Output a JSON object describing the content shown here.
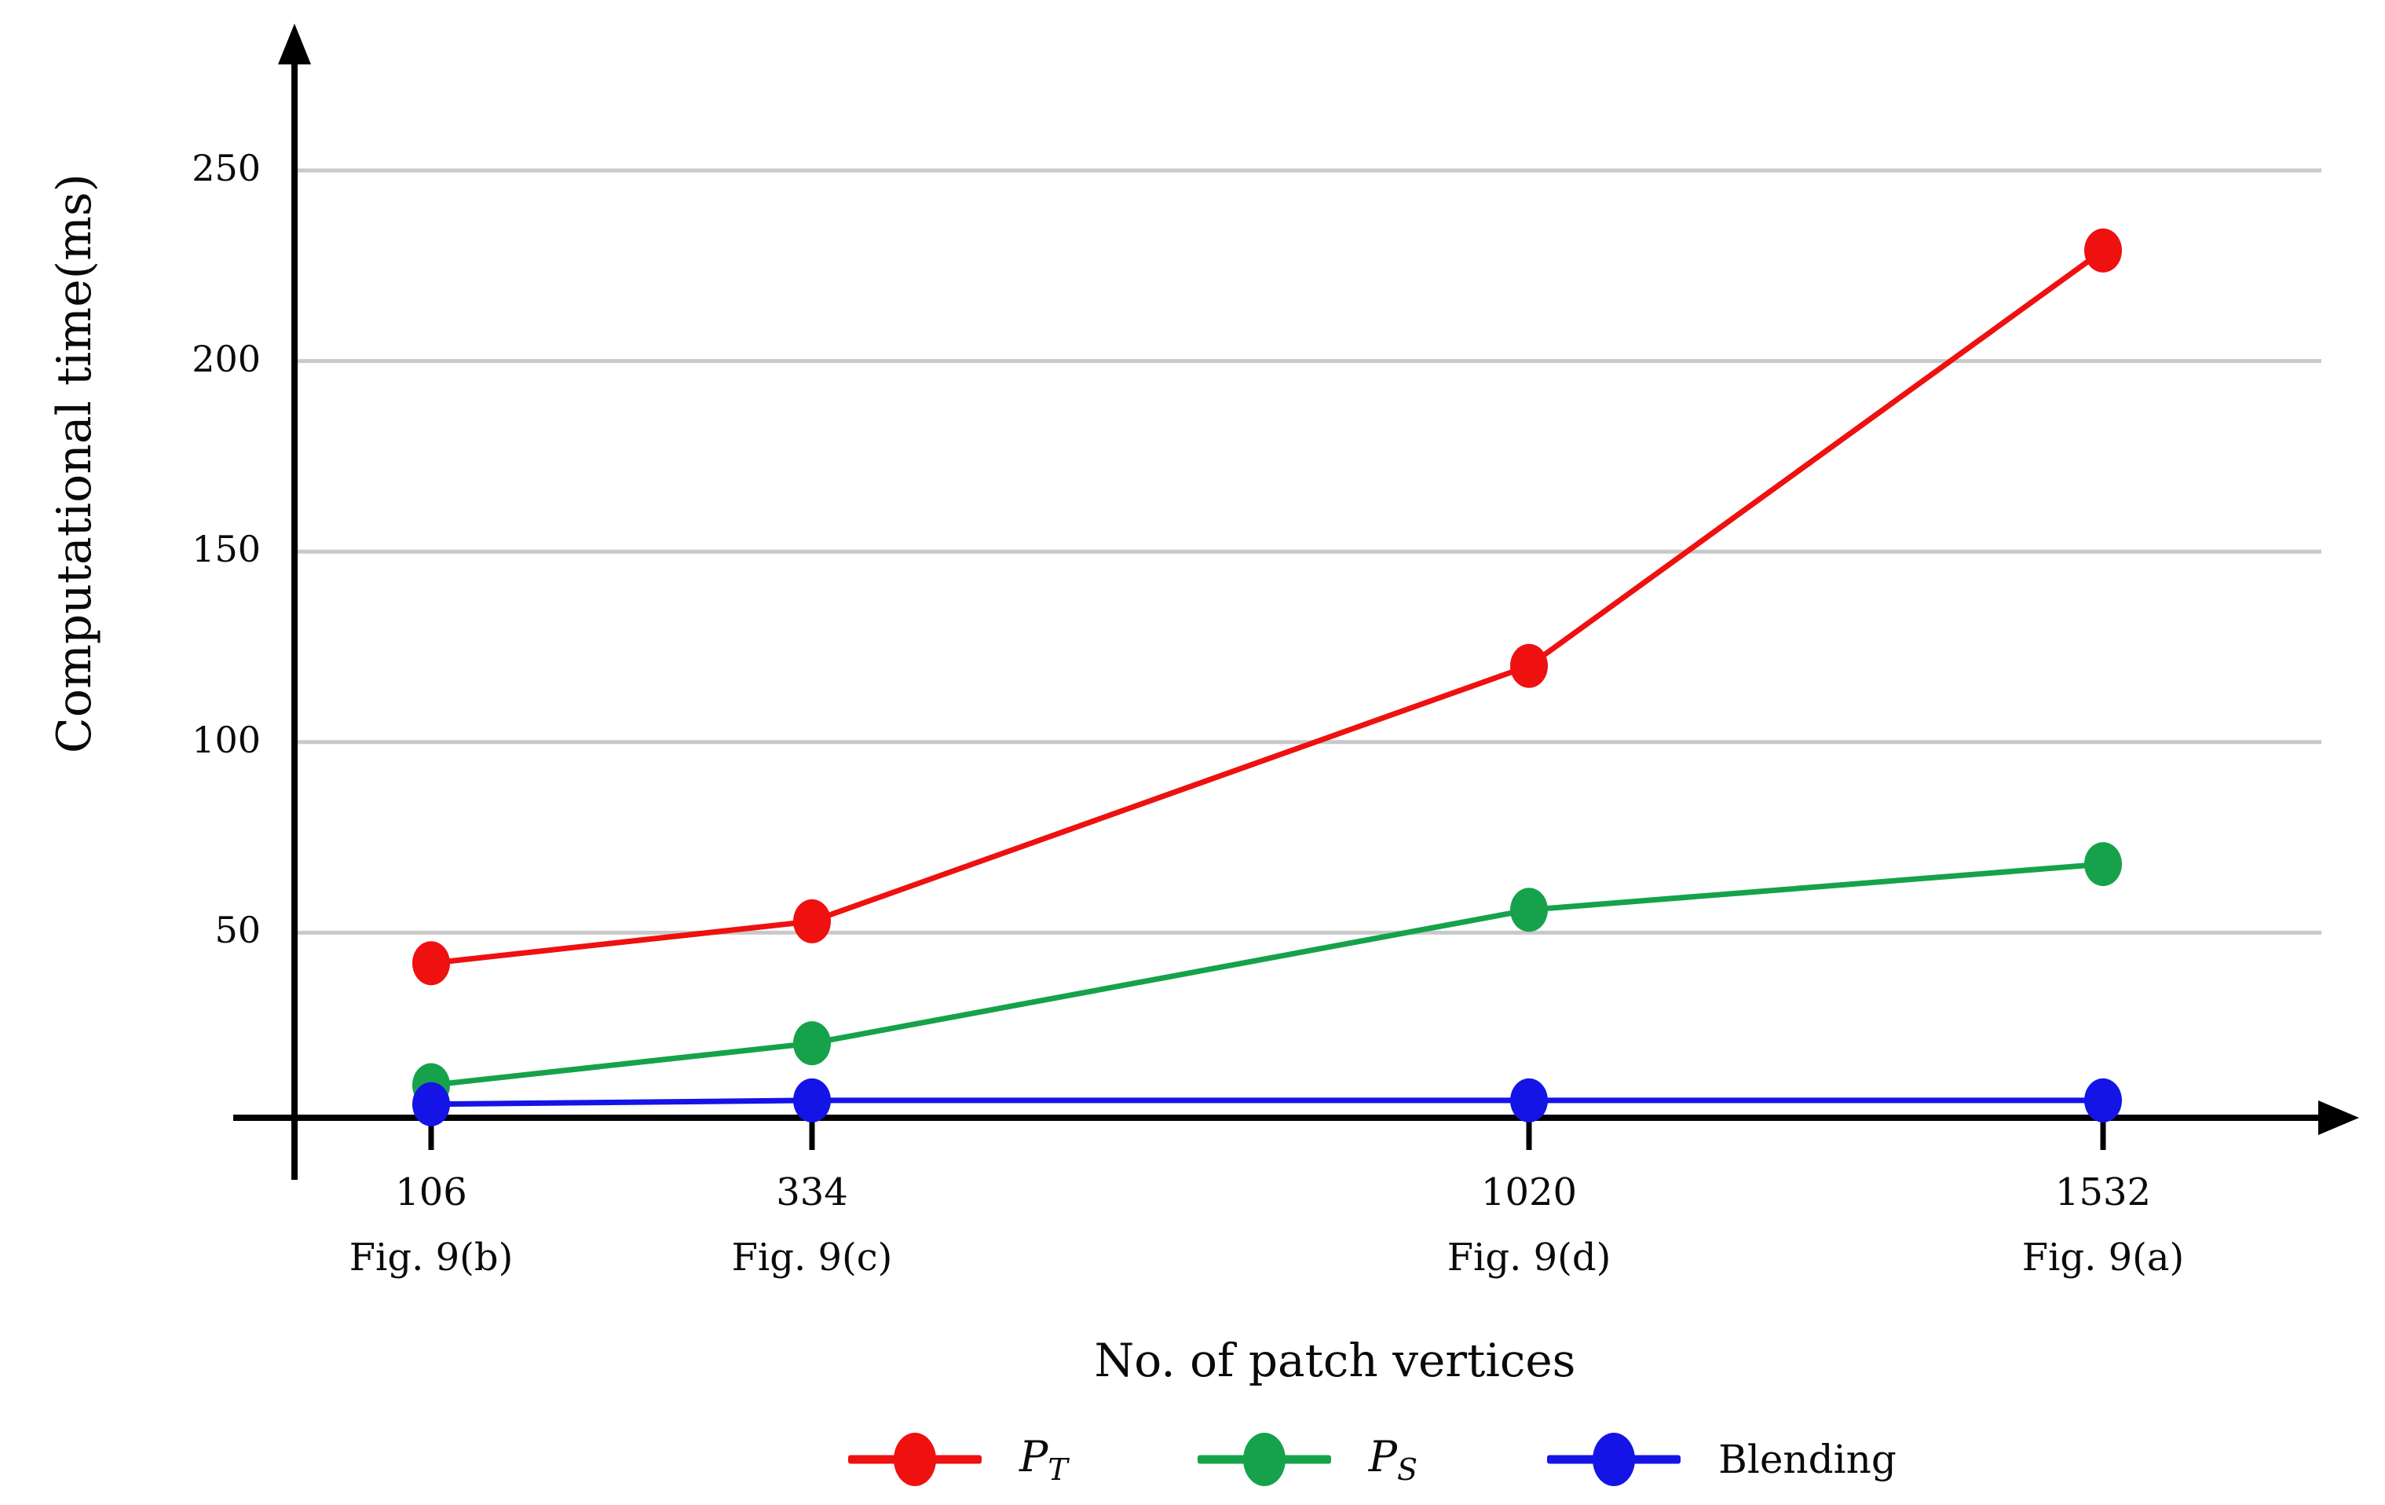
{
  "chart_data": {
    "type": "line",
    "title": "",
    "xlabel": "No. of patch vertices",
    "ylabel": "Computational time(ms)",
    "x_categories": [
      {
        "vertices": "106",
        "figure": "Fig. 9(b)"
      },
      {
        "vertices": "334",
        "figure": "Fig. 9(c)"
      },
      {
        "vertices": "1020",
        "figure": "Fig. 9(d)"
      },
      {
        "vertices": "1532",
        "figure": "Fig. 9(a)"
      }
    ],
    "y_ticks": [
      50,
      100,
      150,
      200,
      250
    ],
    "ylim": [
      0,
      280
    ],
    "grid": "horizontal-only",
    "grid_color": "#c9c9c9",
    "axis_color": "#000000",
    "legend_position": "bottom-center",
    "series": [
      {
        "name": "P_T",
        "legend": {
          "base": "P",
          "sub": "T"
        },
        "color": "#ef1010",
        "values": [
          42,
          53,
          120,
          229
        ]
      },
      {
        "name": "P_S",
        "legend": {
          "base": "P",
          "sub": "S"
        },
        "color": "#16a24b",
        "values": [
          10,
          21,
          56,
          68
        ]
      },
      {
        "name": "Blending",
        "legend": {
          "base": "Blending",
          "sub": ""
        },
        "color": "#1414e6",
        "values": [
          5,
          6,
          6,
          6
        ]
      }
    ]
  }
}
